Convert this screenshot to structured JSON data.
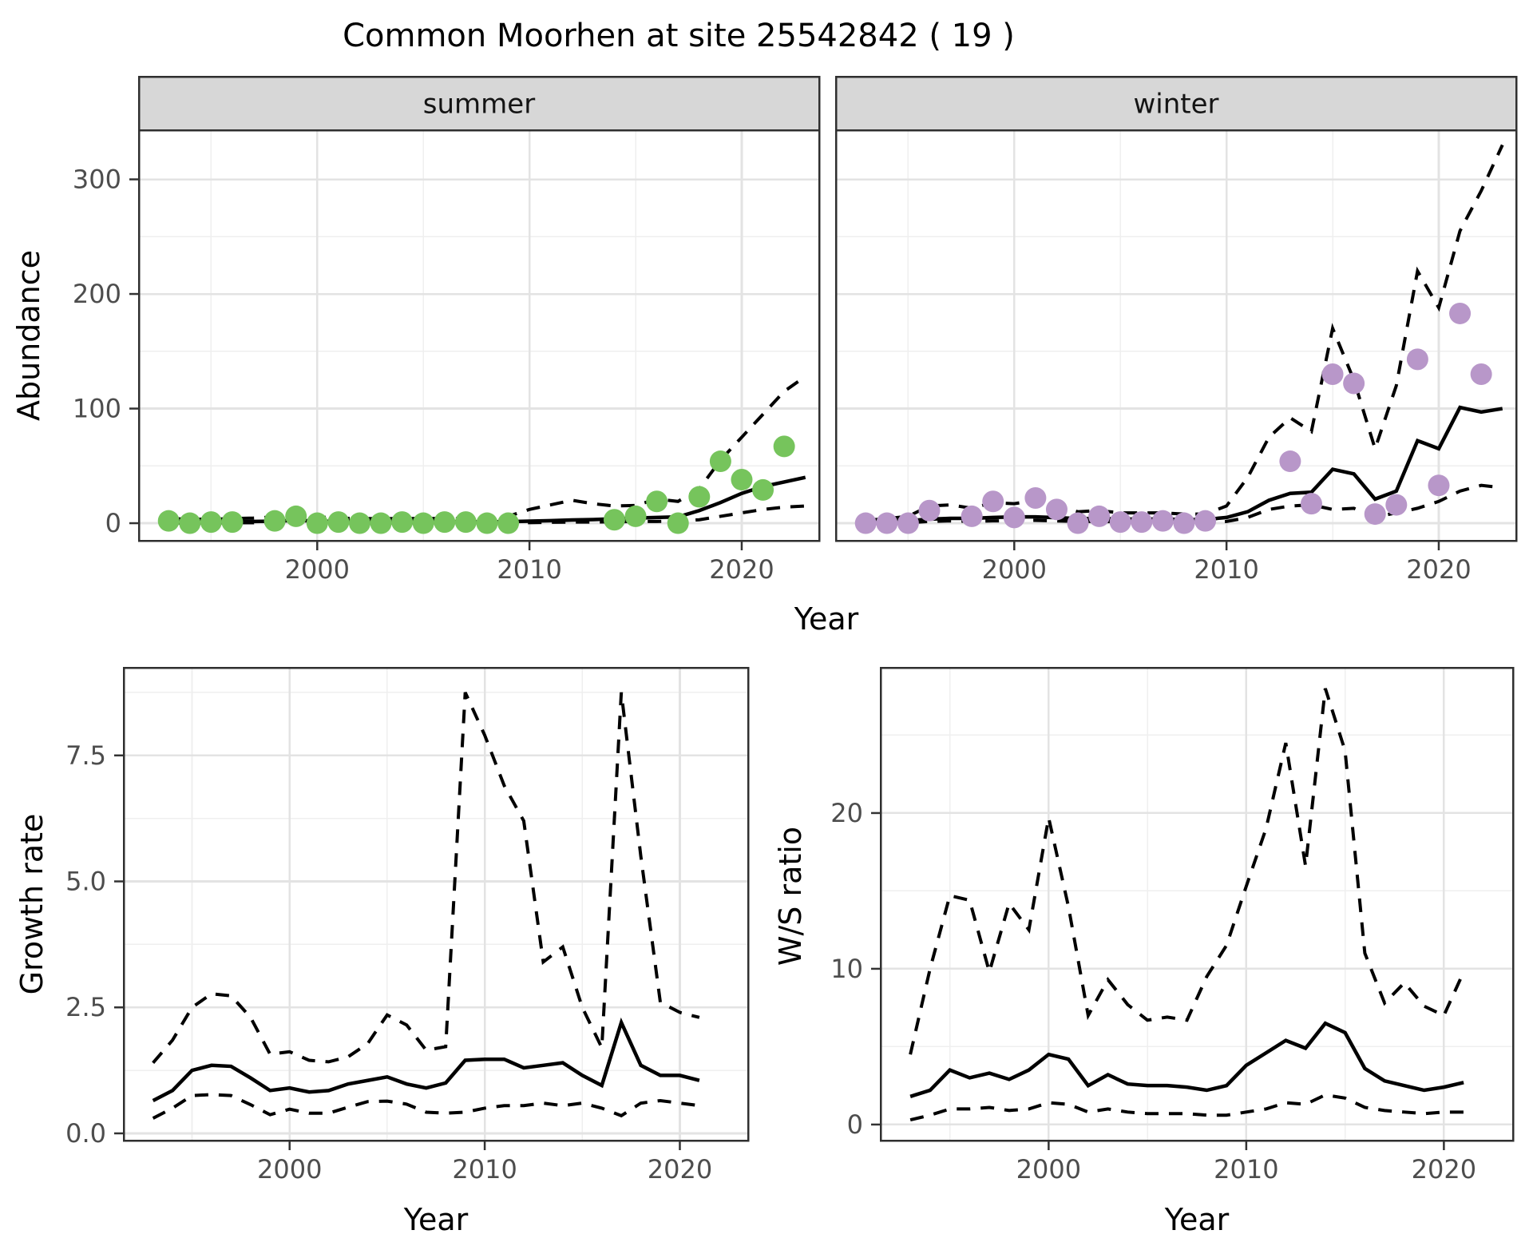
{
  "title": "Common Moorhen at site 25542842 ( 19 )",
  "colors": {
    "summer_points": "#76c45c",
    "winter_points": "#b897c9",
    "line": "#000000",
    "grid_major": "#e3e3e3",
    "grid_minor": "#efefef",
    "panel_border": "#2f2f2f",
    "strip_fill": "#d7d7d7",
    "strip_text": "#141414",
    "tick_label": "#4d4d4d",
    "tick_mark": "#333333",
    "panel_bg": "#ffffff"
  },
  "chart_data": [
    {
      "id": "abundance-summer",
      "type": "line",
      "facet": "summer",
      "ylabel": "Abundance",
      "xlabel": "Year",
      "xlim": [
        1991.6,
        2023.65
      ],
      "ylim": [
        -15.3,
        342.9
      ],
      "x_ticks": [
        2000,
        2010,
        2020
      ],
      "x_tick_labels": [
        "2000",
        "2010",
        "2020"
      ],
      "x_minor": [
        1995,
        2005,
        2015
      ],
      "y_ticks": [
        0,
        100,
        200,
        300
      ],
      "y_tick_labels": [
        "0",
        "100",
        "200",
        "300"
      ],
      "y_minor": [
        50,
        150,
        250
      ],
      "grid": true,
      "legend": "none",
      "series": [
        {
          "name": "median",
          "style": "solid",
          "x0": 1993,
          "y": [
            1.5,
            1.2,
            1.2,
            1.3,
            1.5,
            1.8,
            2.5,
            1.8,
            1.5,
            1.3,
            1.2,
            1.2,
            1.3,
            1.3,
            1.2,
            1.2,
            1.3,
            1.8,
            2.2,
            2.8,
            3.2,
            3.8,
            4.5,
            5,
            5.5,
            11,
            18,
            26,
            32,
            36,
            40
          ]
        },
        {
          "name": "upper-ci",
          "style": "dashed",
          "x0": 1993,
          "y": [
            4,
            3.5,
            3.5,
            4,
            4.5,
            5.5,
            7,
            5.5,
            4.5,
            4,
            4,
            4,
            4.2,
            4,
            4,
            4.5,
            6,
            12,
            16,
            20,
            17,
            15,
            15.5,
            21,
            19,
            30,
            55,
            75,
            95,
            115,
            128
          ]
        },
        {
          "name": "lower-ci",
          "style": "dashed",
          "x0": 1993,
          "y": [
            0.3,
            0.2,
            0.2,
            0.3,
            0.4,
            0.5,
            0.8,
            0.5,
            0.4,
            0.3,
            0.3,
            0.3,
            0.4,
            0.4,
            0.3,
            0.3,
            0.4,
            0.5,
            0.8,
            1,
            1,
            1.2,
            1.5,
            1.5,
            1.8,
            3,
            6,
            9,
            12,
            14,
            15
          ]
        }
      ],
      "points": {
        "name": "observed",
        "color_key": "summer_points",
        "x": [
          1993,
          1994,
          1995,
          1996,
          1998,
          1999,
          2000,
          2001,
          2002,
          2003,
          2004,
          2005,
          2006,
          2007,
          2008,
          2009,
          2014,
          2015,
          2016,
          2017,
          2018,
          2019,
          2020,
          2021,
          2022
        ],
        "y": [
          2,
          0,
          1,
          1,
          2,
          6,
          0,
          1,
          0,
          0,
          1,
          0,
          1,
          1,
          0,
          0,
          3,
          6,
          19,
          0,
          23,
          54,
          38,
          29,
          67
        ]
      }
    },
    {
      "id": "abundance-winter",
      "type": "line",
      "facet": "winter",
      "ylabel": "",
      "xlabel": "Year",
      "xlim": [
        1991.6,
        2023.65
      ],
      "ylim": [
        -15.3,
        342.9
      ],
      "x_ticks": [
        2000,
        2010,
        2020
      ],
      "x_tick_labels": [
        "2000",
        "2010",
        "2020"
      ],
      "x_minor": [
        1995,
        2005,
        2015
      ],
      "y_ticks": [
        0,
        100,
        200,
        300
      ],
      "y_tick_labels": [
        "0",
        "100",
        "200",
        "300"
      ],
      "y_minor": [
        50,
        150,
        250
      ],
      "grid": true,
      "legend": "none",
      "series": [
        {
          "name": "median",
          "style": "solid",
          "x0": 1993,
          "y": [
            1.5,
            1.8,
            2.2,
            3.5,
            4.2,
            4.2,
            5,
            5.5,
            5.5,
            4.8,
            4,
            4,
            3.6,
            3.6,
            3.6,
            3.2,
            3.2,
            5,
            10,
            20,
            26,
            27,
            47,
            43,
            21,
            28,
            72,
            65,
            101,
            97,
            100
          ]
        },
        {
          "name": "upper-ci",
          "style": "dashed",
          "x0": 1993,
          "y": [
            2.5,
            4,
            6,
            15,
            16,
            13,
            18,
            17,
            20,
            15,
            10,
            11,
            9,
            9,
            9,
            8,
            8,
            15,
            40,
            75,
            92,
            80,
            170,
            125,
            65,
            120,
            220,
            188,
            255,
            290,
            330
          ]
        },
        {
          "name": "lower-ci",
          "style": "dashed",
          "x0": 1993,
          "y": [
            0.2,
            0.3,
            0.5,
            1.5,
            2,
            1.5,
            2,
            2,
            2.5,
            2,
            1.5,
            1.5,
            1.2,
            1.2,
            1.2,
            1,
            1,
            1.5,
            5,
            12,
            15,
            16,
            12,
            13,
            5.5,
            9,
            13,
            19,
            28,
            33,
            31
          ]
        }
      ],
      "points": {
        "name": "observed",
        "color_key": "winter_points",
        "x": [
          1993,
          1994,
          1995,
          1996,
          1998,
          1999,
          2000,
          2001,
          2002,
          2003,
          2004,
          2005,
          2006,
          2007,
          2008,
          2009,
          2013,
          2014,
          2015,
          2016,
          2017,
          2018,
          2019,
          2020,
          2021,
          2022
        ],
        "y": [
          0,
          0,
          0,
          11,
          6,
          19,
          5,
          22,
          12,
          0,
          6,
          1,
          1,
          2,
          0,
          2,
          54,
          17,
          130,
          122,
          8,
          16,
          143,
          33,
          183,
          130
        ]
      }
    },
    {
      "id": "growth-rate",
      "type": "line",
      "facet": null,
      "ylabel": "Growth rate",
      "xlabel": "Year",
      "xlim": [
        1991.5,
        2023.5
      ],
      "ylim": [
        -0.143,
        9.24
      ],
      "x_ticks": [
        2000,
        2010,
        2020
      ],
      "x_tick_labels": [
        "2000",
        "2010",
        "2020"
      ],
      "x_minor": [
        1995,
        2005,
        2015
      ],
      "y_ticks": [
        0,
        2.5,
        5,
        7.5
      ],
      "y_tick_labels": [
        "0.0",
        "2.5",
        "5.0",
        "7.5"
      ],
      "y_minor": [
        1.25,
        3.75,
        6.25,
        8.75
      ],
      "grid": true,
      "legend": "none",
      "series": [
        {
          "name": "median",
          "style": "solid",
          "x0": 1993,
          "y": [
            0.65,
            0.85,
            1.25,
            1.35,
            1.33,
            1.1,
            0.85,
            0.9,
            0.82,
            0.85,
            0.98,
            1.05,
            1.12,
            0.98,
            0.9,
            1.0,
            1.45,
            1.47,
            1.47,
            1.3,
            1.35,
            1.4,
            1.15,
            0.95,
            2.2,
            1.35,
            1.15,
            1.15,
            1.05
          ]
        },
        {
          "name": "upper-ci",
          "style": "dashed",
          "x0": 1993,
          "y": [
            1.4,
            1.85,
            2.5,
            2.77,
            2.73,
            2.3,
            1.57,
            1.62,
            1.45,
            1.42,
            1.52,
            1.78,
            2.35,
            2.15,
            1.65,
            1.72,
            8.75,
            7.9,
            6.9,
            6.2,
            3.4,
            3.7,
            2.5,
            1.7,
            8.75,
            5.5,
            2.6,
            2.4,
            2.3
          ]
        },
        {
          "name": "lower-ci",
          "style": "dashed",
          "x0": 1993,
          "y": [
            0.3,
            0.5,
            0.75,
            0.77,
            0.75,
            0.57,
            0.37,
            0.48,
            0.4,
            0.4,
            0.52,
            0.63,
            0.64,
            0.58,
            0.42,
            0.4,
            0.42,
            0.5,
            0.55,
            0.55,
            0.6,
            0.55,
            0.6,
            0.5,
            0.35,
            0.6,
            0.65,
            0.6,
            0.55
          ]
        }
      ],
      "points": null
    },
    {
      "id": "ws-ratio",
      "type": "line",
      "facet": null,
      "ylabel": "W/S ratio",
      "xlabel": "Year",
      "xlim": [
        1991.5,
        2023.5
      ],
      "ylim": [
        -1.03,
        29.33
      ],
      "x_ticks": [
        2000,
        2010,
        2020
      ],
      "x_tick_labels": [
        "2000",
        "2010",
        "2020"
      ],
      "x_minor": [
        1995,
        2005,
        2015
      ],
      "y_ticks": [
        0,
        10,
        20
      ],
      "y_tick_labels": [
        "0",
        "10",
        "20"
      ],
      "y_minor": [
        5,
        15,
        25
      ],
      "grid": true,
      "legend": "none",
      "series": [
        {
          "name": "median",
          "style": "solid",
          "x0": 1993,
          "y": [
            1.8,
            2.2,
            3.5,
            3.0,
            3.3,
            2.9,
            3.5,
            4.5,
            4.2,
            2.5,
            3.2,
            2.6,
            2.5,
            2.5,
            2.4,
            2.2,
            2.5,
            3.8,
            4.6,
            5.4,
            4.9,
            6.5,
            5.9,
            3.6,
            2.8,
            2.5,
            2.2,
            2.4,
            2.7
          ]
        },
        {
          "name": "upper-ci",
          "style": "dashed",
          "x0": 1993,
          "y": [
            4.5,
            10,
            14.7,
            14.4,
            9.8,
            14.2,
            12.5,
            19.7,
            14,
            7,
            9.3,
            7.7,
            6.7,
            6.9,
            6.7,
            9.5,
            11.5,
            15.3,
            19,
            24.5,
            16.6,
            28,
            24,
            11,
            7.8,
            9.1,
            7.6,
            7,
            9.8
          ]
        },
        {
          "name": "lower-ci",
          "style": "dashed",
          "x0": 1993,
          "y": [
            0.3,
            0.6,
            1,
            1,
            1.1,
            0.9,
            1,
            1.4,
            1.3,
            0.8,
            1,
            0.8,
            0.7,
            0.7,
            0.7,
            0.6,
            0.6,
            0.8,
            1,
            1.4,
            1.3,
            1.9,
            1.7,
            1.1,
            0.9,
            0.8,
            0.7,
            0.8,
            0.8
          ]
        }
      ],
      "points": null
    }
  ]
}
